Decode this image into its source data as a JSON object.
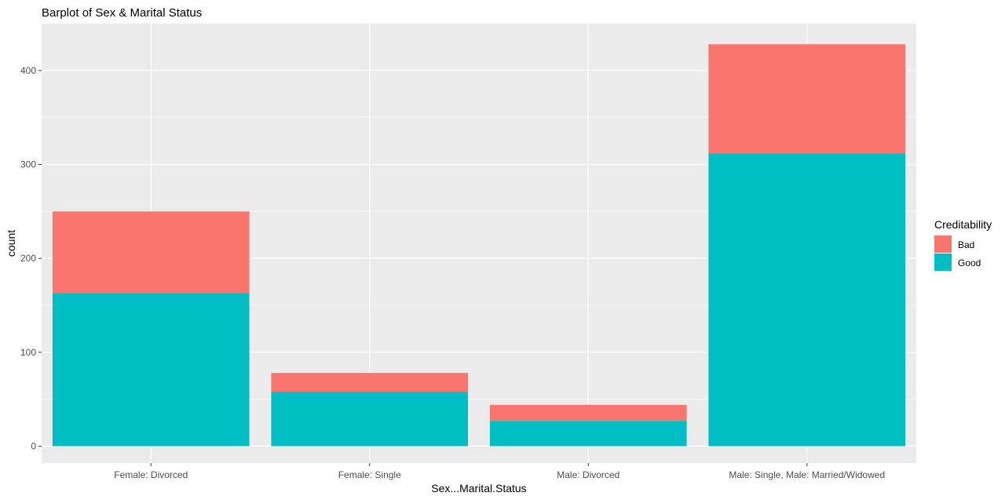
{
  "chart_data": {
    "type": "bar",
    "stacked": true,
    "title": "Barplot of Sex & Marital Status",
    "xlabel": "Sex...Marital.Status",
    "ylabel": "count",
    "categories": [
      "Female: Divorced",
      "Female: Single",
      "Male: Divorced",
      "Male: Single, Male: Married/Widowed"
    ],
    "series": [
      {
        "name": "Good",
        "color": "#00BFC4",
        "values": [
          163,
          58,
          27,
          312
        ]
      },
      {
        "name": "Bad",
        "color": "#F8766D",
        "values": [
          87,
          20,
          17,
          116
        ]
      }
    ],
    "totals": [
      250,
      78,
      44,
      428
    ],
    "ylim": [
      -18,
      450
    ],
    "yticks": [
      0,
      100,
      200,
      300,
      400
    ],
    "grid": true,
    "legend": {
      "title": "Creditability",
      "placement": "right",
      "entries": [
        {
          "name": "Bad",
          "color": "#F8766D"
        },
        {
          "name": "Good",
          "color": "#00BFC4"
        }
      ]
    },
    "panel_background": "#EBEBEB",
    "grid_color": "#FFFFFF"
  }
}
